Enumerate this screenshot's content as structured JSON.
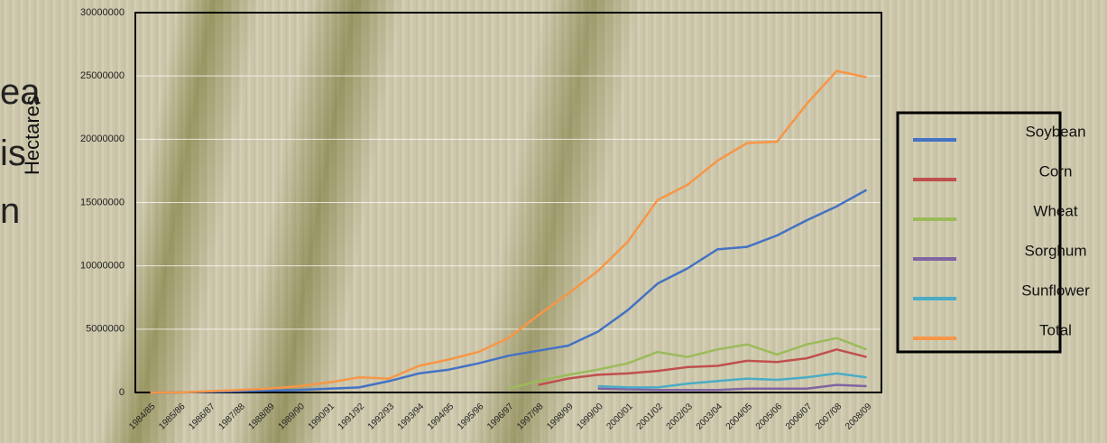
{
  "slide_fragments": [
    "ea",
    "is",
    "n"
  ],
  "chart_data": {
    "type": "line",
    "y_label": "Hectares",
    "categories": [
      "1984/85",
      "1985/86",
      "1986/87",
      "1987/88",
      "1988/89",
      "1989/90",
      "1990/91",
      "1991/92",
      "1992/93",
      "1993/94",
      "1994/95",
      "1995/96",
      "1996/97",
      "1997/98",
      "1998/99",
      "1999/00",
      "2000/01",
      "2001/02",
      "2002/03",
      "2003/04",
      "2004/05",
      "2005/06",
      "2006/07",
      "2007/08",
      "2008/09"
    ],
    "ylim": [
      0,
      30000000
    ],
    "yticks": [
      0,
      5000000,
      10000000,
      15000000,
      20000000,
      25000000,
      30000000
    ],
    "grid": true,
    "series": [
      {
        "name": "Soybean",
        "color": "#4472c4",
        "values": [
          0,
          0,
          50000,
          100000,
          150000,
          200000,
          300000,
          400000,
          900000,
          1500000,
          1800000,
          2300000,
          2900000,
          3300000,
          3700000,
          4800000,
          6500000,
          8600000,
          9800000,
          11300000,
          11500000,
          12400000,
          13600000,
          14700000,
          16000000
        ]
      },
      {
        "name": "Corn",
        "color": "#c0504d",
        "values": [
          null,
          null,
          null,
          null,
          null,
          null,
          null,
          null,
          null,
          null,
          null,
          null,
          null,
          600000,
          1100000,
          1400000,
          1500000,
          1700000,
          2000000,
          2100000,
          2500000,
          2400000,
          2700000,
          3400000,
          2800000
        ]
      },
      {
        "name": "Wheat",
        "color": "#9bbb59",
        "values": [
          null,
          null,
          null,
          null,
          null,
          null,
          null,
          null,
          null,
          null,
          null,
          null,
          300000,
          900000,
          1400000,
          1800000,
          2300000,
          3200000,
          2800000,
          3400000,
          3800000,
          3000000,
          3800000,
          4300000,
          3400000
        ]
      },
      {
        "name": "Sorghum",
        "color": "#8064a2",
        "values": [
          null,
          null,
          null,
          null,
          null,
          null,
          null,
          null,
          null,
          null,
          null,
          null,
          null,
          null,
          null,
          300000,
          250000,
          200000,
          200000,
          200000,
          300000,
          300000,
          300000,
          600000,
          500000
        ]
      },
      {
        "name": "Sunflower",
        "color": "#4bacc6",
        "values": [
          null,
          null,
          null,
          null,
          null,
          null,
          null,
          null,
          null,
          null,
          null,
          null,
          null,
          null,
          null,
          500000,
          400000,
          400000,
          700000,
          900000,
          1100000,
          1000000,
          1200000,
          1500000,
          1200000
        ]
      },
      {
        "name": "Total",
        "color": "#f79646",
        "values": [
          0,
          0,
          100000,
          200000,
          300000,
          500000,
          800000,
          1200000,
          1100000,
          2100000,
          2600000,
          3200000,
          4300000,
          6100000,
          7800000,
          9600000,
          11900000,
          15200000,
          16400000,
          18300000,
          19700000,
          19800000,
          22800000,
          25400000,
          24900000
        ]
      }
    ]
  }
}
